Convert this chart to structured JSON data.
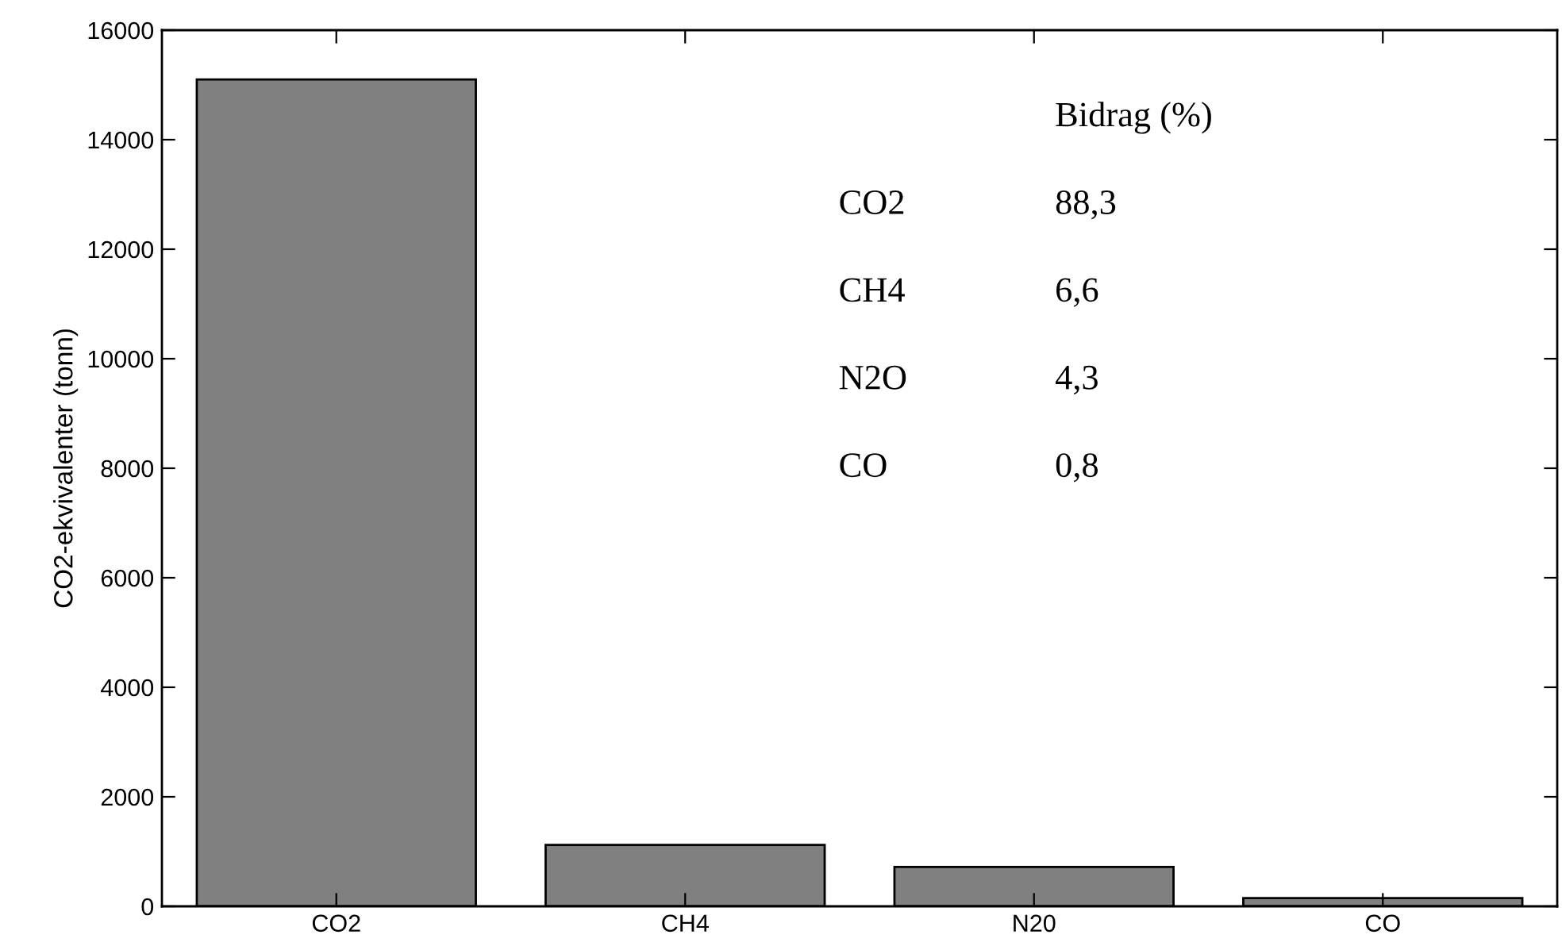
{
  "chart_data": {
    "type": "bar",
    "ylabel": "CO2-ekvivalenter (tonn)",
    "categories": [
      "CO2",
      "CH4",
      "N20",
      "CO"
    ],
    "values": [
      15100,
      1120,
      720,
      150
    ],
    "color": "#808080",
    "ylim": [
      0,
      16000
    ],
    "yticks": [
      0,
      2000,
      4000,
      6000,
      8000,
      10000,
      12000,
      14000,
      16000
    ],
    "grid": false,
    "annotations": [
      "Bidrag (%)",
      "CO2",
      "88,3",
      "CH4",
      "6,6",
      "N2O",
      "4,3",
      "CO",
      "0,8"
    ]
  }
}
